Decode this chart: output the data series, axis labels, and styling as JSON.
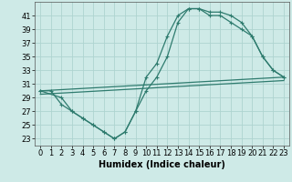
{
  "xlabel": "Humidex (Indice chaleur)",
  "background_color": "#ceeae7",
  "grid_color": "#aed4d0",
  "line_color": "#2e7b6e",
  "xlim": [
    -0.5,
    23.5
  ],
  "ylim": [
    22,
    43
  ],
  "xticks": [
    0,
    1,
    2,
    3,
    4,
    5,
    6,
    7,
    8,
    9,
    10,
    11,
    12,
    13,
    14,
    15,
    16,
    17,
    18,
    19,
    20,
    21,
    22,
    23
  ],
  "yticks": [
    23,
    25,
    27,
    29,
    31,
    33,
    35,
    37,
    39,
    41
  ],
  "curve1_x": [
    0,
    1,
    2,
    3,
    4,
    5,
    6,
    7,
    8,
    9,
    10,
    11,
    12,
    13,
    14,
    15,
    16,
    17,
    18,
    19,
    20,
    21,
    22,
    23
  ],
  "curve1_y": [
    30,
    30,
    28,
    27,
    26,
    25,
    24,
    23,
    24,
    27,
    32,
    34,
    38,
    41,
    42,
    42,
    41.5,
    41.5,
    41,
    40,
    38,
    35,
    33,
    32
  ],
  "curve2_x": [
    0,
    2,
    3,
    4,
    5,
    6,
    7,
    8,
    9,
    10,
    11,
    12,
    13,
    14,
    15,
    16,
    17,
    18,
    19,
    20,
    21,
    22,
    23
  ],
  "curve2_y": [
    30,
    29,
    27,
    26,
    25,
    24,
    23,
    24,
    27,
    30,
    32,
    35,
    40,
    42,
    42,
    41,
    41,
    40,
    39,
    38,
    35,
    33,
    32
  ],
  "line1_x": [
    0,
    23
  ],
  "line1_y": [
    30,
    32
  ],
  "line2_x": [
    0,
    23
  ],
  "line2_y": [
    29.5,
    31.5
  ],
  "xlabel_fontsize": 7,
  "tick_fontsize": 6
}
